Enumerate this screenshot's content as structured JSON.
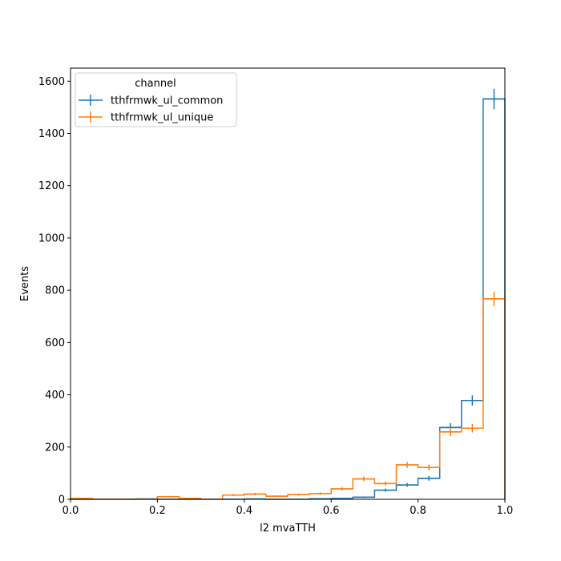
{
  "chart_data": {
    "type": "histogram",
    "title": "",
    "xlabel": "l2 mvaTTH",
    "ylabel": "Events",
    "xlim": [
      0,
      1
    ],
    "ylim": [
      0,
      1650
    ],
    "x_ticks": [
      0.0,
      0.2,
      0.4,
      0.6,
      0.8,
      1.0
    ],
    "x_tick_labels": [
      "0.0",
      "0.2",
      "0.4",
      "0.6",
      "0.8",
      "1.0"
    ],
    "y_ticks": [
      0,
      200,
      400,
      600,
      800,
      1000,
      1200,
      1400,
      1600
    ],
    "y_tick_labels": [
      "0",
      "200",
      "400",
      "600",
      "800",
      "1000",
      "1200",
      "1400",
      "1600"
    ],
    "grid": false,
    "legend": {
      "title": "channel",
      "position": "top-left"
    },
    "bin_edges": [
      0.0,
      0.05,
      0.1,
      0.15,
      0.2,
      0.25,
      0.3,
      0.35,
      0.4,
      0.45,
      0.5,
      0.55,
      0.6,
      0.65,
      0.7,
      0.75,
      0.8,
      0.85,
      0.9,
      0.95,
      1.0
    ],
    "series": [
      {
        "name": "tthfrmwk_ul_common",
        "color": "#1f77b4",
        "values": [
          0,
          0,
          0,
          1,
          0,
          0,
          0,
          0,
          1,
          0,
          0,
          2,
          3,
          8,
          35,
          55,
          80,
          275,
          378,
          1532
        ],
        "errors": [
          0,
          0,
          0,
          1,
          0,
          0,
          0,
          0,
          1,
          0,
          0,
          1.4,
          1.7,
          2.8,
          5.9,
          7.4,
          8.9,
          16.6,
          19.4,
          39.1
        ]
      },
      {
        "name": "tthfrmwk_ul_unique",
        "color": "#ff7f0e",
        "values": [
          4,
          0,
          0,
          0,
          10,
          4,
          0,
          16,
          20,
          12,
          18,
          22,
          40,
          78,
          60,
          132,
          122,
          258,
          272,
          767
        ],
        "errors": [
          2,
          0,
          0,
          0,
          3.2,
          2,
          0,
          4,
          4.5,
          3.5,
          4.2,
          4.7,
          6.3,
          8.8,
          7.7,
          11.5,
          11,
          16.1,
          16.5,
          27.7
        ]
      }
    ]
  }
}
